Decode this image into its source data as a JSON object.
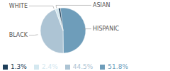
{
  "chart_data": {
    "type": "pie",
    "categories": [
      "HISPANIC",
      "BLACK",
      "WHITE",
      "ASIAN"
    ],
    "values": [
      51.8,
      44.5,
      2.4,
      1.3
    ],
    "value_labels": [
      "51.8%",
      "44.5%",
      "2.4%",
      "1.3%"
    ],
    "colors": [
      "#6e9dba",
      "#adc4d4",
      "#d4e8f0",
      "#1e3f5a"
    ],
    "legend": "lower left"
  }
}
